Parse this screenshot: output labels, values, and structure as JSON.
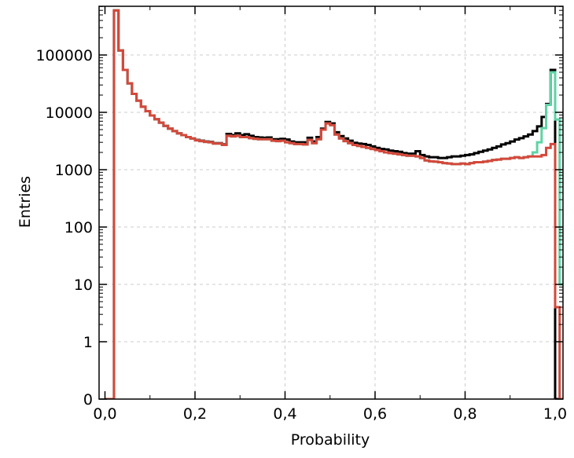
{
  "chart_data": {
    "type": "histogram",
    "xlabel": "Probability",
    "ylabel": "Entries",
    "xlim": [
      0.0,
      1.02
    ],
    "yscale": "log",
    "ylim_visible": [
      1,
      1000000
    ],
    "grid": true,
    "x_tick_labels": [
      "0,0",
      "0,2",
      "0,4",
      "0,6",
      "0,8",
      "1,0"
    ],
    "x_tick_values": [
      0.0,
      0.2,
      0.4,
      0.6,
      0.8,
      1.0
    ],
    "y_tick_labels": [
      "0",
      "1",
      "10",
      "100",
      "1000",
      "10000",
      "100000"
    ],
    "y_tick_values": [
      0,
      1,
      10,
      100,
      1000,
      10000,
      100000
    ],
    "series": [
      {
        "color": "#000000",
        "points": [
          [
            0.0,
            0
          ],
          [
            0.01,
            0
          ],
          [
            0.02,
            600000
          ],
          [
            0.03,
            120000
          ],
          [
            0.04,
            55000
          ],
          [
            0.05,
            32000
          ],
          [
            0.06,
            21000
          ],
          [
            0.07,
            16000
          ],
          [
            0.08,
            12500
          ],
          [
            0.09,
            10500
          ],
          [
            0.1,
            8800
          ],
          [
            0.11,
            7600
          ],
          [
            0.12,
            6600
          ],
          [
            0.13,
            5800
          ],
          [
            0.14,
            5200
          ],
          [
            0.15,
            4700
          ],
          [
            0.16,
            4300
          ],
          [
            0.17,
            4000
          ],
          [
            0.18,
            3700
          ],
          [
            0.19,
            3500
          ],
          [
            0.2,
            3300
          ],
          [
            0.21,
            3200
          ],
          [
            0.22,
            3100
          ],
          [
            0.23,
            3050
          ],
          [
            0.24,
            2900
          ],
          [
            0.25,
            2900
          ],
          [
            0.26,
            2750
          ],
          [
            0.27,
            4200
          ],
          [
            0.28,
            4000
          ],
          [
            0.29,
            4300
          ],
          [
            0.3,
            4000
          ],
          [
            0.31,
            4150
          ],
          [
            0.32,
            3900
          ],
          [
            0.33,
            3700
          ],
          [
            0.34,
            3650
          ],
          [
            0.35,
            3600
          ],
          [
            0.36,
            3650
          ],
          [
            0.37,
            3400
          ],
          [
            0.38,
            3400
          ],
          [
            0.39,
            3450
          ],
          [
            0.4,
            3350
          ],
          [
            0.41,
            3100
          ],
          [
            0.42,
            3000
          ],
          [
            0.43,
            3000
          ],
          [
            0.44,
            3000
          ],
          [
            0.45,
            3600
          ],
          [
            0.46,
            3100
          ],
          [
            0.47,
            3700
          ],
          [
            0.48,
            5200
          ],
          [
            0.49,
            6800
          ],
          [
            0.5,
            6400
          ],
          [
            0.51,
            4500
          ],
          [
            0.52,
            3850
          ],
          [
            0.53,
            3500
          ],
          [
            0.54,
            3200
          ],
          [
            0.55,
            2950
          ],
          [
            0.56,
            2850
          ],
          [
            0.57,
            2800
          ],
          [
            0.58,
            2700
          ],
          [
            0.59,
            2550
          ],
          [
            0.6,
            2400
          ],
          [
            0.61,
            2300
          ],
          [
            0.62,
            2250
          ],
          [
            0.63,
            2150
          ],
          [
            0.64,
            2100
          ],
          [
            0.65,
            2050
          ],
          [
            0.66,
            1950
          ],
          [
            0.67,
            1900
          ],
          [
            0.68,
            1900
          ],
          [
            0.69,
            2100
          ],
          [
            0.7,
            1800
          ],
          [
            0.71,
            1700
          ],
          [
            0.72,
            1650
          ],
          [
            0.73,
            1650
          ],
          [
            0.74,
            1600
          ],
          [
            0.75,
            1600
          ],
          [
            0.76,
            1650
          ],
          [
            0.77,
            1700
          ],
          [
            0.78,
            1700
          ],
          [
            0.79,
            1750
          ],
          [
            0.8,
            1800
          ],
          [
            0.81,
            1850
          ],
          [
            0.82,
            1950
          ],
          [
            0.83,
            2050
          ],
          [
            0.84,
            2150
          ],
          [
            0.85,
            2250
          ],
          [
            0.86,
            2400
          ],
          [
            0.87,
            2550
          ],
          [
            0.88,
            2750
          ],
          [
            0.89,
            2900
          ],
          [
            0.9,
            3100
          ],
          [
            0.91,
            3350
          ],
          [
            0.92,
            3550
          ],
          [
            0.93,
            3800
          ],
          [
            0.94,
            4100
          ],
          [
            0.95,
            4700
          ],
          [
            0.96,
            5700
          ],
          [
            0.97,
            8300
          ],
          [
            0.98,
            14000
          ],
          [
            0.99,
            55000
          ],
          [
            1.0,
            0
          ],
          [
            1.01,
            0
          ]
        ]
      },
      {
        "color": "#5fd3a6",
        "points": [
          [
            0.0,
            0
          ],
          [
            0.01,
            0
          ],
          [
            0.02,
            600000
          ],
          [
            0.03,
            120000
          ],
          [
            0.04,
            55000
          ],
          [
            0.05,
            32000
          ],
          [
            0.06,
            21000
          ],
          [
            0.07,
            16000
          ],
          [
            0.08,
            12500
          ],
          [
            0.09,
            10500
          ],
          [
            0.1,
            8800
          ],
          [
            0.11,
            7600
          ],
          [
            0.12,
            6600
          ],
          [
            0.13,
            5800
          ],
          [
            0.14,
            5200
          ],
          [
            0.15,
            4700
          ],
          [
            0.16,
            4300
          ],
          [
            0.17,
            4000
          ],
          [
            0.18,
            3700
          ],
          [
            0.19,
            3500
          ],
          [
            0.2,
            3250
          ],
          [
            0.21,
            3150
          ],
          [
            0.22,
            3050
          ],
          [
            0.23,
            3000
          ],
          [
            0.24,
            2850
          ],
          [
            0.25,
            2850
          ],
          [
            0.26,
            2700
          ],
          [
            0.27,
            3900
          ],
          [
            0.28,
            3800
          ],
          [
            0.29,
            3900
          ],
          [
            0.3,
            3700
          ],
          [
            0.31,
            3700
          ],
          [
            0.32,
            3550
          ],
          [
            0.33,
            3450
          ],
          [
            0.34,
            3400
          ],
          [
            0.35,
            3400
          ],
          [
            0.36,
            3400
          ],
          [
            0.37,
            3200
          ],
          [
            0.38,
            3150
          ],
          [
            0.39,
            3200
          ],
          [
            0.4,
            3000
          ],
          [
            0.41,
            2900
          ],
          [
            0.42,
            2800
          ],
          [
            0.43,
            2800
          ],
          [
            0.44,
            2750
          ],
          [
            0.45,
            3300
          ],
          [
            0.46,
            2900
          ],
          [
            0.47,
            3400
          ],
          [
            0.48,
            5000
          ],
          [
            0.49,
            6400
          ],
          [
            0.5,
            6000
          ],
          [
            0.51,
            4100
          ],
          [
            0.52,
            3500
          ],
          [
            0.53,
            3150
          ],
          [
            0.54,
            2900
          ],
          [
            0.55,
            2700
          ],
          [
            0.56,
            2600
          ],
          [
            0.57,
            2500
          ],
          [
            0.58,
            2400
          ],
          [
            0.59,
            2300
          ],
          [
            0.6,
            2200
          ],
          [
            0.61,
            2100
          ],
          [
            0.62,
            2000
          ],
          [
            0.63,
            1950
          ],
          [
            0.64,
            1900
          ],
          [
            0.65,
            1850
          ],
          [
            0.66,
            1800
          ],
          [
            0.67,
            1750
          ],
          [
            0.68,
            1750
          ],
          [
            0.69,
            1700
          ],
          [
            0.7,
            1600
          ],
          [
            0.71,
            1450
          ],
          [
            0.72,
            1400
          ],
          [
            0.73,
            1380
          ],
          [
            0.74,
            1350
          ],
          [
            0.75,
            1300
          ],
          [
            0.76,
            1280
          ],
          [
            0.77,
            1250
          ],
          [
            0.78,
            1250
          ],
          [
            0.79,
            1280
          ],
          [
            0.8,
            1250
          ],
          [
            0.81,
            1300
          ],
          [
            0.82,
            1350
          ],
          [
            0.83,
            1350
          ],
          [
            0.84,
            1380
          ],
          [
            0.85,
            1420
          ],
          [
            0.86,
            1480
          ],
          [
            0.87,
            1500
          ],
          [
            0.88,
            1550
          ],
          [
            0.89,
            1550
          ],
          [
            0.9,
            1600
          ],
          [
            0.91,
            1650
          ],
          [
            0.92,
            1600
          ],
          [
            0.93,
            1650
          ],
          [
            0.94,
            1700
          ],
          [
            0.95,
            2000
          ],
          [
            0.96,
            3000
          ],
          [
            0.97,
            5300
          ],
          [
            0.98,
            13500
          ],
          [
            0.99,
            50000
          ],
          [
            1.0,
            7500
          ],
          [
            1.01,
            10
          ]
        ]
      },
      {
        "color": "#d4483b",
        "points": [
          [
            0.0,
            0
          ],
          [
            0.01,
            0
          ],
          [
            0.02,
            600000
          ],
          [
            0.03,
            120000
          ],
          [
            0.04,
            55000
          ],
          [
            0.05,
            32000
          ],
          [
            0.06,
            21000
          ],
          [
            0.07,
            16000
          ],
          [
            0.08,
            12500
          ],
          [
            0.09,
            10500
          ],
          [
            0.1,
            8800
          ],
          [
            0.11,
            7600
          ],
          [
            0.12,
            6600
          ],
          [
            0.13,
            5800
          ],
          [
            0.14,
            5200
          ],
          [
            0.15,
            4700
          ],
          [
            0.16,
            4300
          ],
          [
            0.17,
            4000
          ],
          [
            0.18,
            3700
          ],
          [
            0.19,
            3500
          ],
          [
            0.2,
            3250
          ],
          [
            0.21,
            3150
          ],
          [
            0.22,
            3050
          ],
          [
            0.23,
            3000
          ],
          [
            0.24,
            2850
          ],
          [
            0.25,
            2850
          ],
          [
            0.26,
            2700
          ],
          [
            0.27,
            3900
          ],
          [
            0.28,
            3800
          ],
          [
            0.29,
            3900
          ],
          [
            0.3,
            3700
          ],
          [
            0.31,
            3700
          ],
          [
            0.32,
            3550
          ],
          [
            0.33,
            3450
          ],
          [
            0.34,
            3400
          ],
          [
            0.35,
            3400
          ],
          [
            0.36,
            3400
          ],
          [
            0.37,
            3200
          ],
          [
            0.38,
            3150
          ],
          [
            0.39,
            3200
          ],
          [
            0.4,
            3000
          ],
          [
            0.41,
            2900
          ],
          [
            0.42,
            2800
          ],
          [
            0.43,
            2800
          ],
          [
            0.44,
            2750
          ],
          [
            0.45,
            3300
          ],
          [
            0.46,
            2900
          ],
          [
            0.47,
            3400
          ],
          [
            0.48,
            5000
          ],
          [
            0.49,
            6400
          ],
          [
            0.5,
            6000
          ],
          [
            0.51,
            4100
          ],
          [
            0.52,
            3500
          ],
          [
            0.53,
            3150
          ],
          [
            0.54,
            2900
          ],
          [
            0.55,
            2700
          ],
          [
            0.56,
            2600
          ],
          [
            0.57,
            2500
          ],
          [
            0.58,
            2400
          ],
          [
            0.59,
            2300
          ],
          [
            0.6,
            2200
          ],
          [
            0.61,
            2100
          ],
          [
            0.62,
            2000
          ],
          [
            0.63,
            1950
          ],
          [
            0.64,
            1900
          ],
          [
            0.65,
            1850
          ],
          [
            0.66,
            1800
          ],
          [
            0.67,
            1750
          ],
          [
            0.68,
            1750
          ],
          [
            0.69,
            1700
          ],
          [
            0.7,
            1600
          ],
          [
            0.71,
            1450
          ],
          [
            0.72,
            1400
          ],
          [
            0.73,
            1380
          ],
          [
            0.74,
            1350
          ],
          [
            0.75,
            1300
          ],
          [
            0.76,
            1280
          ],
          [
            0.77,
            1250
          ],
          [
            0.78,
            1250
          ],
          [
            0.79,
            1280
          ],
          [
            0.8,
            1250
          ],
          [
            0.81,
            1300
          ],
          [
            0.82,
            1350
          ],
          [
            0.83,
            1350
          ],
          [
            0.84,
            1380
          ],
          [
            0.85,
            1420
          ],
          [
            0.86,
            1480
          ],
          [
            0.87,
            1500
          ],
          [
            0.88,
            1550
          ],
          [
            0.89,
            1550
          ],
          [
            0.9,
            1600
          ],
          [
            0.91,
            1650
          ],
          [
            0.92,
            1600
          ],
          [
            0.93,
            1650
          ],
          [
            0.94,
            1700
          ],
          [
            0.95,
            1700
          ],
          [
            0.96,
            1700
          ],
          [
            0.97,
            1800
          ],
          [
            0.98,
            2400
          ],
          [
            0.99,
            2800
          ],
          [
            1.0,
            4
          ],
          [
            1.01,
            0
          ]
        ]
      }
    ]
  }
}
